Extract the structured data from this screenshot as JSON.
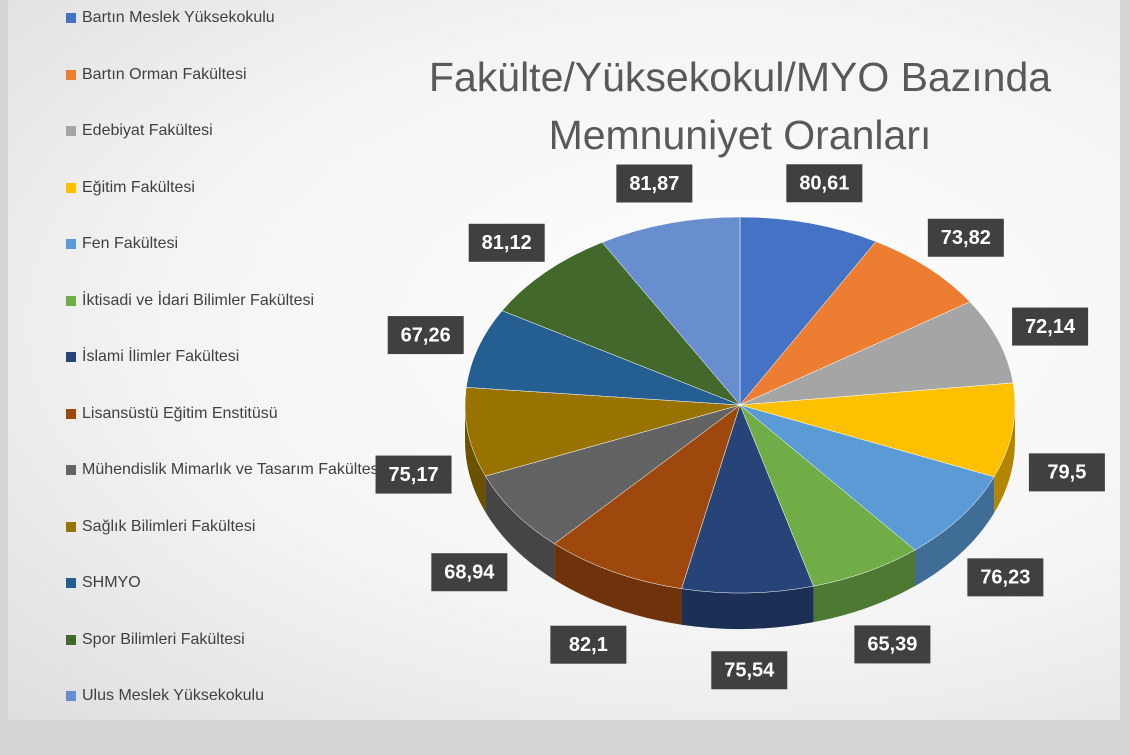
{
  "chart_data": {
    "type": "pie",
    "title": "Fakülte/Yüksekokul/MYO Bazında Memnuniyet Oranları",
    "categories": [
      "Bartın Meslek Yüksekokulu",
      "Bartın Orman Fakültesi",
      "Edebiyat Fakültesi",
      "Eğitim Fakültesi",
      "Fen Fakültesi",
      "İktisadi ve İdari Bilimler Fakültesi",
      "İslami İlimler Fakültesi",
      "Lisansüstü Eğitim Enstitüsü",
      "Mühendislik Mimarlık ve Tasarım Fakültesi",
      "Sağlık Bilimleri Fakültesi",
      "SHMYO",
      "Spor Bilimleri Fakültesi",
      "Ulus Meslek Yüksekokulu"
    ],
    "values": [
      80.61,
      73.82,
      72.14,
      79.5,
      76.23,
      65.39,
      75.54,
      82.1,
      68.94,
      75.17,
      67.26,
      81.12,
      81.87
    ],
    "value_labels": [
      "80,61",
      "73,82",
      "72,14",
      "79,5",
      "76,23",
      "65,39",
      "75,54",
      "82,1",
      "68,94",
      "75,17",
      "67,26",
      "81,12",
      "81,87"
    ],
    "colors": [
      "#4472c4",
      "#ed7d31",
      "#a5a5a5",
      "#ffc000",
      "#5b9bd5",
      "#70ad47",
      "#264478",
      "#9e480e",
      "#636363",
      "#997300",
      "#255e91",
      "#43682b",
      "#698ed0"
    ],
    "legend": "left"
  }
}
